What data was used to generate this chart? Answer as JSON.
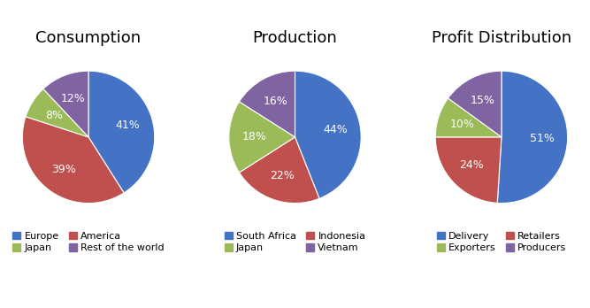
{
  "consumption": {
    "title": "Consumption",
    "labels": [
      "Europe",
      "America",
      "Japan",
      "Rest of the world"
    ],
    "values": [
      41,
      39,
      8,
      12
    ],
    "colors": [
      "#4472C4",
      "#C0504D",
      "#9BBB59",
      "#8064A2"
    ],
    "pct_labels": [
      "41%",
      "39%",
      "8%",
      "12%"
    ],
    "startangle": 90
  },
  "production": {
    "title": "Production",
    "labels": [
      "South Africa",
      "Indonesia",
      "Japan",
      "Vietnam"
    ],
    "values": [
      44,
      22,
      18,
      16
    ],
    "colors": [
      "#4472C4",
      "#C0504D",
      "#9BBB59",
      "#8064A2"
    ],
    "pct_labels": [
      "44%",
      "22%",
      "18%",
      "16%"
    ],
    "startangle": 90
  },
  "profit": {
    "title": "Profit Distribution",
    "labels": [
      "Delivery",
      "Retailers",
      "Exporters",
      "Producers"
    ],
    "values": [
      51,
      24,
      10,
      15
    ],
    "colors": [
      "#4472C4",
      "#C0504D",
      "#9BBB59",
      "#8064A2"
    ],
    "pct_labels": [
      "51%",
      "24%",
      "10%",
      "15%"
    ],
    "startangle": 90
  },
  "title_fontsize": 13,
  "label_fontsize": 9,
  "legend_fontsize": 8,
  "background_color": "#FFFFFF"
}
